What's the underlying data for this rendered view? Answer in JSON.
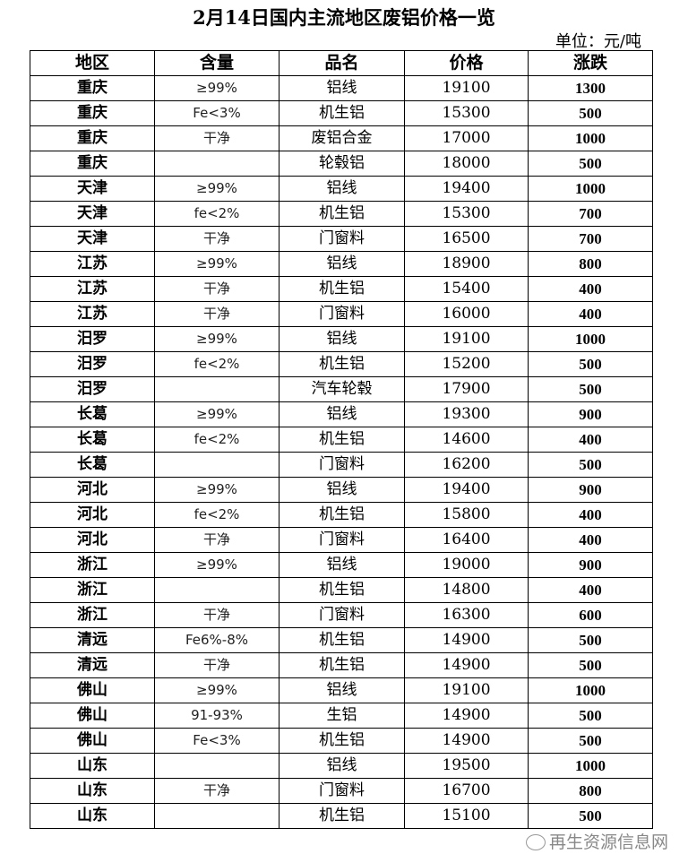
{
  "title": "2月14日国内主流地区废铝价格一览",
  "unit": "单位：元/吨",
  "headers": [
    "地区",
    "含量",
    "品名",
    "价格",
    "涨跌"
  ],
  "rows": [
    [
      "重庆",
      "≥99%",
      "铝线",
      "19100",
      "1300"
    ],
    [
      "重庆",
      "Fe<3%",
      "机生铝",
      "15300",
      "500"
    ],
    [
      "重庆",
      "干净",
      "废铝合金",
      "17000",
      "1000"
    ],
    [
      "重庆",
      "",
      "轮毂铝",
      "18000",
      "500"
    ],
    [
      "天津",
      "≥99%",
      "铝线",
      "19400",
      "1000"
    ],
    [
      "天津",
      "fe<2%",
      "机生铝",
      "15300",
      "700"
    ],
    [
      "天津",
      "干净",
      "门窗料",
      "16500",
      "700"
    ],
    [
      "江苏",
      "≥99%",
      "铝线",
      "18900",
      "800"
    ],
    [
      "江苏",
      "干净",
      "机生铝",
      "15400",
      "400"
    ],
    [
      "江苏",
      "干净",
      "门窗料",
      "16000",
      "400"
    ],
    [
      "汨罗",
      "≥99%",
      "铝线",
      "19100",
      "1000"
    ],
    [
      "汨罗",
      "fe<2%",
      "机生铝",
      "15200",
      "500"
    ],
    [
      "汨罗",
      "",
      "汽车轮毂",
      "17900",
      "500"
    ],
    [
      "长葛",
      "≥99%",
      "铝线",
      "19300",
      "900"
    ],
    [
      "长葛",
      "fe<2%",
      "机生铝",
      "14600",
      "400"
    ],
    [
      "长葛",
      "",
      "门窗料",
      "16200",
      "500"
    ],
    [
      "河北",
      "≥99%",
      "铝线",
      "19400",
      "900"
    ],
    [
      "河北",
      "fe<2%",
      "机生铝",
      "15800",
      "400"
    ],
    [
      "河北",
      "干净",
      "门窗料",
      "16400",
      "400"
    ],
    [
      "浙江",
      "≥99%",
      "铝线",
      "19000",
      "900"
    ],
    [
      "浙江",
      "",
      "机生铝",
      "14800",
      "400"
    ],
    [
      "浙江",
      "干净",
      "门窗料",
      "16300",
      "600"
    ],
    [
      "清远",
      "Fe6%-8%",
      "机生铝",
      "14900",
      "500"
    ],
    [
      "清远",
      "干净",
      "机生铝",
      "14900",
      "500"
    ],
    [
      "佛山",
      "≥99%",
      "铝线",
      "19100",
      "1000"
    ],
    [
      "佛山",
      "91-93%",
      "生铝",
      "14900",
      "500"
    ],
    [
      "佛山",
      "Fe<3%",
      "机生铝",
      "14900",
      "500"
    ],
    [
      "山东",
      "",
      "铝线",
      "19500",
      "1000"
    ],
    [
      "山东",
      "干净",
      "门窗料",
      "16700",
      "800"
    ],
    [
      "山东",
      "",
      "机生铝",
      "15100",
      "500"
    ]
  ],
  "watermark": "再生资源信息网"
}
